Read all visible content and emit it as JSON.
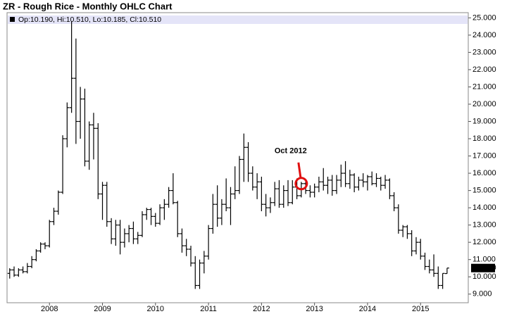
{
  "chart_data": {
    "type": "ohlc",
    "title": "ZR - Rough Rice - Monthly OHLC Chart",
    "info_text": "Op:10.190, Hi:10.510, Lo:10.185, Cl:10.510",
    "color": "#000000",
    "xlim": [
      2007.2,
      2015.9
    ],
    "xticks": [
      2008,
      2009,
      2010,
      2011,
      2012,
      2013,
      2014,
      2015
    ],
    "ylim": [
      8.5,
      25.3
    ],
    "yticks": [
      {
        "value": 9,
        "label": "9.000"
      },
      {
        "value": 10,
        "label": "10.000"
      },
      {
        "value": 11,
        "label": "11.000"
      },
      {
        "value": 12,
        "label": "12.000"
      },
      {
        "value": 13,
        "label": "13.000"
      },
      {
        "value": 14,
        "label": "14.000"
      },
      {
        "value": 15,
        "label": "15.000"
      },
      {
        "value": 16,
        "label": "16.000"
      },
      {
        "value": 17,
        "label": "17.000"
      },
      {
        "value": 18,
        "label": "18.000"
      },
      {
        "value": 19,
        "label": "19.000"
      },
      {
        "value": 20,
        "label": "20.000"
      },
      {
        "value": 21,
        "label": "21.000"
      },
      {
        "value": 22,
        "label": "22.000"
      },
      {
        "value": 23,
        "label": "23.000"
      },
      {
        "value": 24,
        "label": "24.000"
      },
      {
        "value": 25,
        "label": "25.000"
      }
    ],
    "last_price": {
      "value": 10.51,
      "label": "10.510"
    },
    "annotation": {
      "text": "Oct 2012",
      "x": 2012.75,
      "y": 15.4,
      "color": "#e01010"
    },
    "x": [
      2007.25,
      2007.333,
      2007.417,
      2007.5,
      2007.583,
      2007.667,
      2007.75,
      2007.833,
      2007.917,
      2008,
      2008.083,
      2008.167,
      2008.25,
      2008.333,
      2008.417,
      2008.5,
      2008.583,
      2008.667,
      2008.75,
      2008.833,
      2008.917,
      2009,
      2009.083,
      2009.167,
      2009.25,
      2009.333,
      2009.417,
      2009.5,
      2009.583,
      2009.667,
      2009.75,
      2009.833,
      2009.917,
      2010,
      2010.083,
      2010.167,
      2010.25,
      2010.333,
      2010.417,
      2010.5,
      2010.583,
      2010.667,
      2010.75,
      2010.833,
      2010.917,
      2011,
      2011.083,
      2011.167,
      2011.25,
      2011.333,
      2011.417,
      2011.5,
      2011.583,
      2011.667,
      2011.75,
      2011.833,
      2011.917,
      2012,
      2012.083,
      2012.167,
      2012.25,
      2012.333,
      2012.417,
      2012.5,
      2012.583,
      2012.667,
      2012.75,
      2012.833,
      2012.917,
      2013,
      2013.083,
      2013.167,
      2013.25,
      2013.333,
      2013.417,
      2013.5,
      2013.583,
      2013.667,
      2013.75,
      2013.833,
      2013.917,
      2014,
      2014.083,
      2014.167,
      2014.25,
      2014.333,
      2014.417,
      2014.5,
      2014.583,
      2014.667,
      2014.75,
      2014.833,
      2014.917,
      2015,
      2015.083,
      2015.167,
      2015.25,
      2015.333,
      2015.417,
      2015.5
    ],
    "open": [
      10.2,
      10.4,
      10.1,
      10.4,
      10.3,
      10.6,
      11.0,
      11.5,
      11.9,
      11.8,
      13.2,
      13.8,
      14.9,
      18.0,
      19.8,
      21.5,
      19.0,
      20.3,
      16.7,
      18.8,
      18.6,
      14.8,
      15.3,
      13.2,
      12.2,
      13.0,
      12.0,
      12.5,
      12.8,
      12.2,
      12.4,
      13.6,
      13.9,
      13.5,
      13.1,
      14.0,
      14.2,
      15.0,
      14.3,
      12.5,
      11.8,
      11.6,
      10.8,
      9.5,
      10.8,
      11.2,
      12.8,
      14.2,
      13.4,
      14.2,
      14.0,
      14.8,
      15.0,
      16.8,
      17.5,
      16.0,
      15.2,
      15.5,
      14.2,
      14.0,
      14.3,
      15.1,
      14.2,
      15.0,
      14.3,
      15.2,
      14.7,
      15.4,
      15.0,
      14.9,
      15.2,
      15.5,
      15.3,
      15.6,
      15.0,
      15.6,
      16.0,
      15.4,
      15.9,
      15.2,
      15.6,
      15.5,
      15.8,
      15.4,
      15.7,
      15.3,
      15.6,
      14.7,
      14.0,
      12.7,
      12.9,
      12.5,
      11.5,
      12.0,
      11.2,
      10.6,
      10.4,
      10.2,
      9.5,
      10.19
    ],
    "high": [
      10.5,
      10.6,
      10.5,
      10.6,
      10.8,
      11.2,
      11.6,
      12.0,
      12.0,
      13.3,
      14.0,
      15.0,
      18.2,
      20.1,
      24.8,
      23.8,
      21.0,
      20.9,
      19.0,
      19.5,
      18.9,
      15.5,
      15.5,
      13.4,
      13.3,
      13.3,
      12.8,
      13.0,
      13.2,
      12.6,
      13.8,
      14.0,
      14.0,
      13.7,
      14.2,
      14.5,
      15.2,
      16.0,
      14.4,
      12.8,
      12.2,
      11.8,
      11.2,
      11.0,
      11.5,
      13.0,
      14.8,
      15.3,
      14.5,
      15.7,
      15.2,
      16.4,
      17.0,
      18.3,
      17.8,
      16.4,
      16.0,
      15.8,
      14.8,
      14.6,
      15.5,
      15.6,
      15.3,
      15.6,
      15.6,
      15.7,
      15.5,
      15.6,
      15.3,
      15.4,
      15.8,
      16.3,
      15.8,
      15.9,
      15.9,
      16.5,
      16.7,
      16.2,
      16.0,
      15.8,
      16.0,
      15.9,
      16.1,
      16.0,
      15.8,
      15.9,
      15.7,
      14.9,
      14.2,
      13.0,
      13.0,
      12.7,
      12.3,
      12.2,
      11.4,
      11.0,
      11.3,
      10.6,
      10.2,
      10.51
    ],
    "low": [
      9.9,
      10.0,
      10.0,
      10.2,
      10.2,
      10.5,
      10.9,
      11.4,
      11.6,
      11.7,
      13.0,
      13.6,
      14.8,
      17.5,
      19.5,
      17.7,
      18.0,
      16.4,
      16.2,
      16.8,
      14.5,
      13.3,
      12.9,
      11.9,
      11.8,
      11.3,
      11.7,
      12.0,
      11.9,
      11.9,
      12.3,
      13.3,
      13.0,
      12.9,
      13.0,
      13.3,
      14.0,
      14.2,
      12.3,
      11.4,
      11.2,
      10.6,
      9.3,
      9.3,
      10.2,
      11.0,
      12.5,
      12.9,
      13.0,
      13.8,
      13.0,
      14.5,
      14.8,
      15.5,
      15.5,
      15.0,
      14.5,
      13.8,
      13.5,
      13.7,
      14.1,
      14.0,
      14.0,
      14.1,
      14.2,
      14.5,
      14.6,
      14.8,
      14.6,
      14.6,
      14.9,
      15.0,
      14.8,
      14.7,
      14.8,
      15.2,
      15.2,
      15.1,
      14.9,
      15.0,
      15.2,
      15.0,
      15.3,
      15.2,
      15.0,
      15.1,
      14.5,
      13.8,
      12.5,
      12.3,
      12.2,
      11.2,
      11.3,
      11.0,
      10.4,
      10.2,
      10.0,
      9.3,
      9.3,
      10.185
    ],
    "close": [
      10.4,
      10.1,
      10.4,
      10.3,
      10.6,
      11.0,
      11.5,
      11.9,
      11.8,
      13.2,
      13.8,
      14.9,
      18.0,
      19.8,
      21.5,
      19.0,
      20.3,
      16.7,
      18.8,
      18.6,
      14.8,
      15.3,
      13.2,
      12.2,
      13.0,
      12.0,
      12.5,
      12.8,
      12.2,
      12.4,
      13.6,
      13.9,
      13.5,
      13.1,
      14.0,
      14.2,
      15.0,
      14.3,
      12.5,
      11.8,
      11.6,
      10.8,
      9.5,
      10.8,
      11.2,
      12.8,
      14.2,
      13.4,
      14.2,
      14.0,
      14.8,
      15.0,
      16.8,
      17.5,
      16.0,
      15.2,
      15.5,
      14.2,
      14.0,
      14.3,
      15.1,
      14.2,
      15.0,
      14.3,
      15.2,
      14.7,
      15.4,
      15.0,
      14.9,
      15.2,
      15.5,
      15.3,
      15.6,
      15.0,
      15.6,
      16.0,
      15.4,
      15.9,
      15.2,
      15.6,
      15.5,
      15.8,
      15.4,
      15.7,
      15.3,
      15.6,
      14.7,
      14.0,
      12.7,
      12.9,
      12.5,
      11.5,
      12.0,
      11.2,
      10.6,
      10.4,
      10.2,
      9.5,
      10.2,
      10.51
    ]
  }
}
